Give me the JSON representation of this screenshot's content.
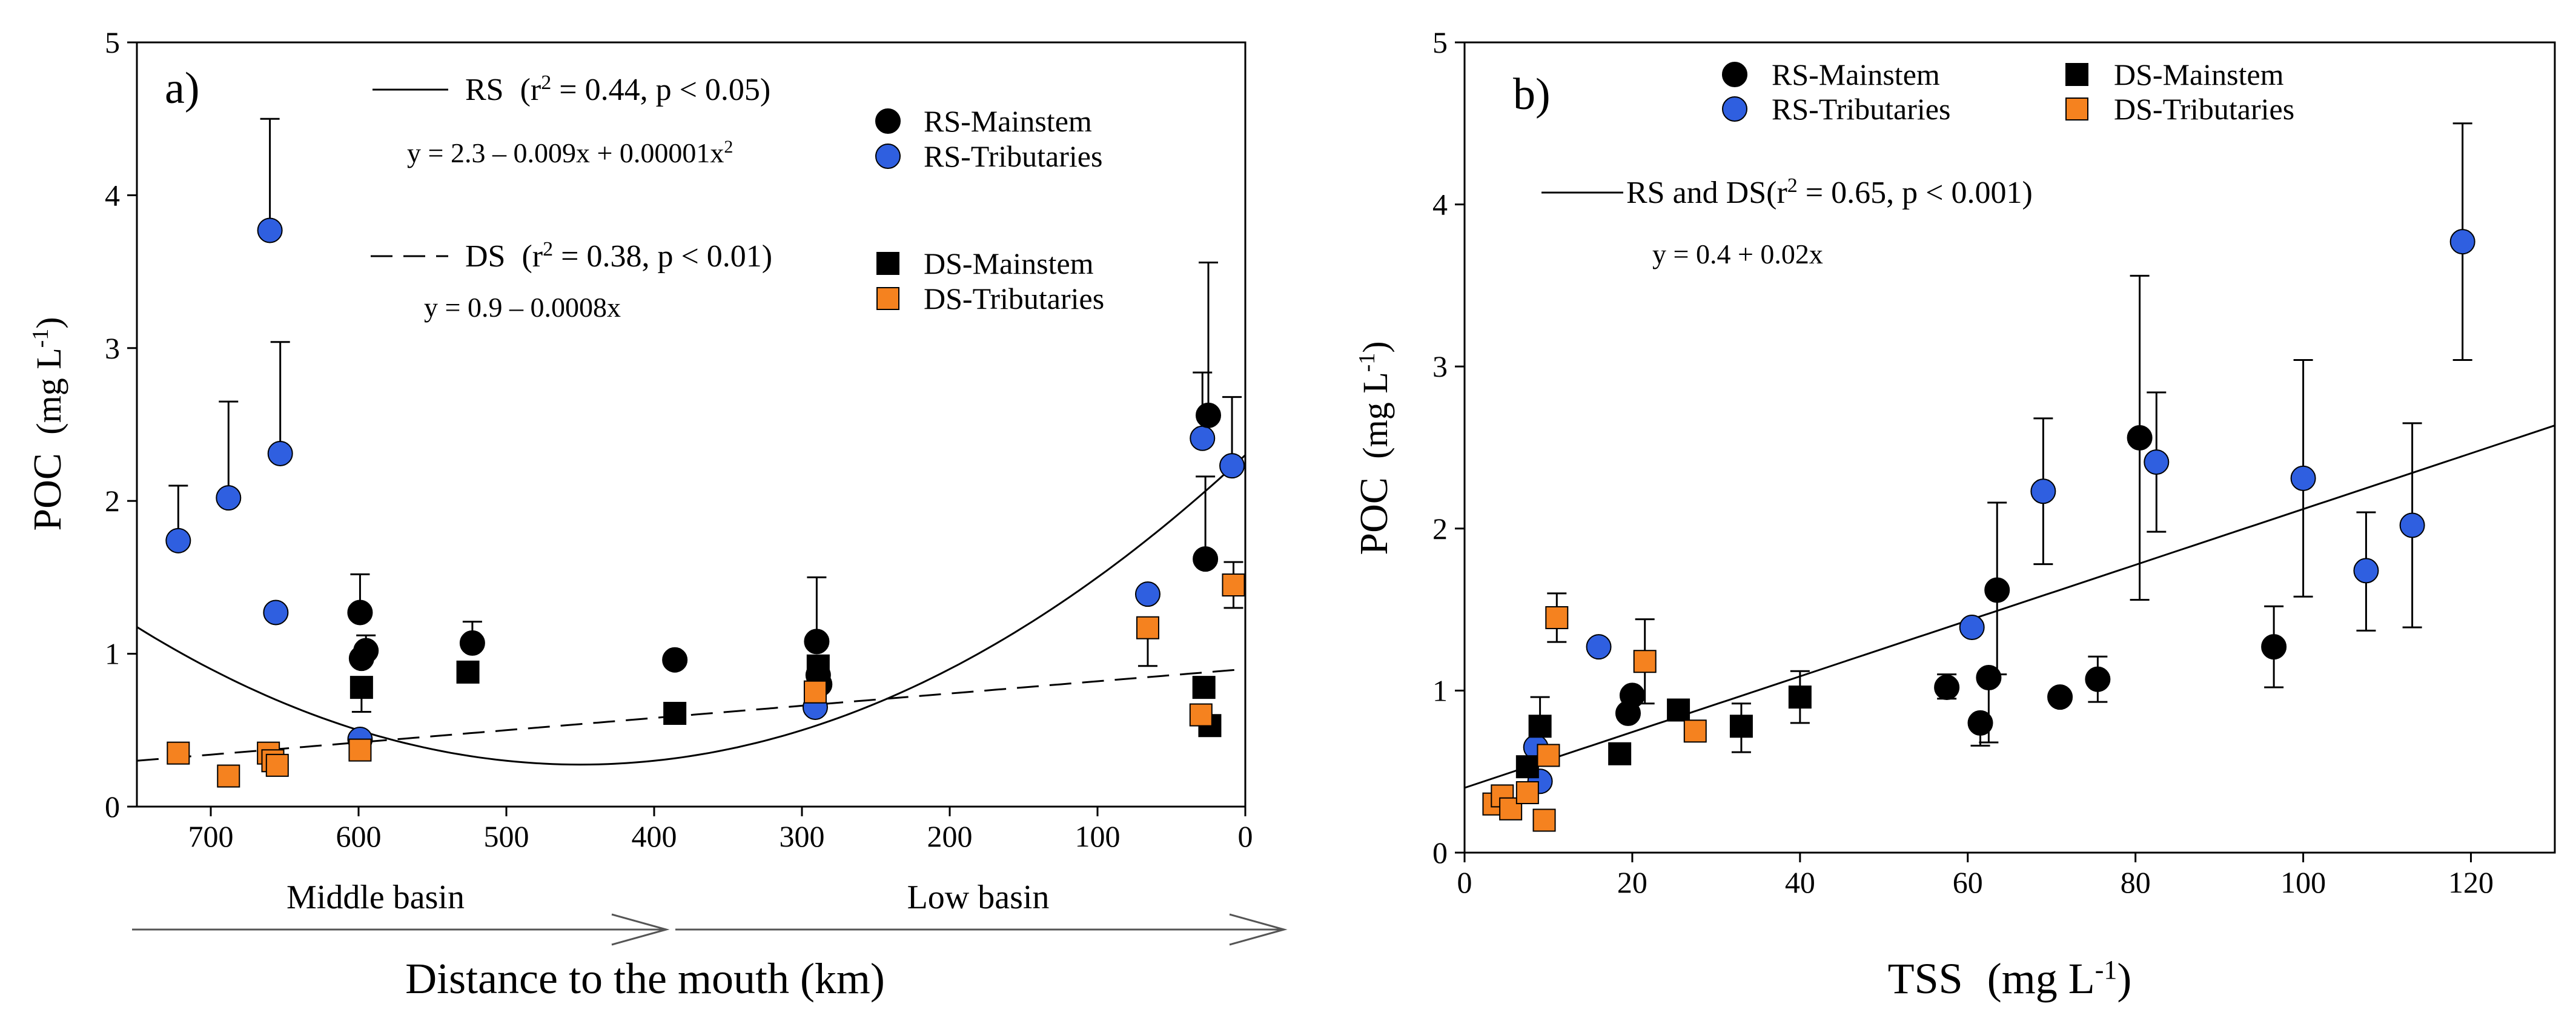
{
  "chart_data": [
    {
      "id": "a",
      "type": "scatter",
      "panel_label": "a)",
      "ylabel_main": "POC",
      "ylabel_unit": "(mg L",
      "ylabel_sup": "-1",
      "ylabel_close": ")",
      "xlabel": "Distance to the mouth  (km)",
      "xlim": [
        750,
        0
      ],
      "ylim": [
        0,
        5
      ],
      "xticks": [
        700,
        600,
        500,
        400,
        300,
        200,
        100,
        0
      ],
      "yticks": [
        0,
        1,
        2,
        3,
        4,
        5
      ],
      "basins": {
        "middle": "Middle basin",
        "low": "Low basin"
      },
      "fits": {
        "rs": {
          "label": "RS",
          "stats_open": "(r",
          "stats_sup": "2",
          "stats_rest": " = 0.44, p < 0.05)",
          "equation": "y = 2.3 – 0.009x + 0.00001x",
          "equation_sup": "2",
          "coef": [
            2.3,
            -0.009,
            1e-05
          ],
          "x_range": [
            750,
            0
          ]
        },
        "ds": {
          "label": "DS",
          "stats_open": "(r",
          "stats_sup": "2",
          "stats_rest": " = 0.38, p < 0.01)",
          "equation": "y  = 0.9 – 0.0008x",
          "coef": [
            0.9,
            -0.0008
          ],
          "x_range": [
            750,
            0
          ]
        }
      },
      "legend_top": [
        {
          "label": "RS-Mainstem",
          "marker": "circle",
          "color": "#000000"
        },
        {
          "label": "RS-Tributaries",
          "marker": "circle",
          "color": "#2f5fe0"
        }
      ],
      "legend_bottom": [
        {
          "label": "DS-Mainstem",
          "marker": "square",
          "color": "#000000"
        },
        {
          "label": "DS-Tributaries",
          "marker": "square",
          "color": "#f5821f"
        }
      ],
      "series": [
        {
          "name": "RS-Tributaries",
          "marker": "circle",
          "color": "#2f5fe0",
          "points": [
            {
              "x": 722,
              "y": 1.74,
              "hi": 2.1
            },
            {
              "x": 688,
              "y": 2.02,
              "hi": 2.65
            },
            {
              "x": 660,
              "y": 3.77,
              "hi": 4.5
            },
            {
              "x": 656,
              "y": 1.27
            },
            {
              "x": 653,
              "y": 2.31,
              "hi": 3.04
            },
            {
              "x": 599,
              "y": 0.44
            },
            {
              "x": 66,
              "y": 1.39
            },
            {
              "x": 29,
              "y": 2.41,
              "hi": 2.84
            },
            {
              "x": 9,
              "y": 2.23,
              "hi": 2.68
            },
            {
              "x": 291,
              "y": 0.65
            }
          ]
        },
        {
          "name": "RS-Mainstem",
          "marker": "circle",
          "color": "#000000",
          "points": [
            {
              "x": 599,
              "y": 1.27,
              "hi": 1.52
            },
            {
              "x": 598,
              "y": 0.97
            },
            {
              "x": 595,
              "y": 1.02,
              "hi": 1.12
            },
            {
              "x": 523,
              "y": 1.07,
              "hi": 1.21
            },
            {
              "x": 386,
              "y": 0.96
            },
            {
              "x": 290,
              "y": 1.08,
              "hi": 1.5
            },
            {
              "x": 289,
              "y": 0.86
            },
            {
              "x": 288,
              "y": 0.8
            },
            {
              "x": 25,
              "y": 2.56,
              "hi": 3.56
            },
            {
              "x": 27,
              "y": 1.62,
              "hi": 2.16
            }
          ]
        },
        {
          "name": "DS-Mainstem",
          "marker": "square",
          "color": "#000000",
          "points": [
            {
              "x": 598,
              "y": 0.78,
              "lo": 0.62
            },
            {
              "x": 526,
              "y": 0.88
            },
            {
              "x": 386,
              "y": 0.61
            },
            {
              "x": 289,
              "y": 0.92
            },
            {
              "x": 28,
              "y": 0.78
            },
            {
              "x": 24,
              "y": 0.53
            }
          ]
        },
        {
          "name": "DS-Tributaries",
          "marker": "square",
          "color": "#f5821f",
          "points": [
            {
              "x": 722,
              "y": 0.35
            },
            {
              "x": 688,
              "y": 0.2
            },
            {
              "x": 661,
              "y": 0.35
            },
            {
              "x": 658,
              "y": 0.3
            },
            {
              "x": 655,
              "y": 0.27
            },
            {
              "x": 599,
              "y": 0.37
            },
            {
              "x": 291,
              "y": 0.75
            },
            {
              "x": 66,
              "y": 1.17,
              "lo": 0.92
            },
            {
              "x": 30,
              "y": 0.6
            },
            {
              "x": 8,
              "y": 1.45,
              "hi": 1.6,
              "lo": 1.3
            }
          ]
        }
      ]
    },
    {
      "id": "b",
      "type": "scatter",
      "panel_label": "b)",
      "ylabel_main": "POC",
      "ylabel_unit": "(mg L",
      "ylabel_sup": "-1",
      "ylabel_close": ")",
      "xlabel_main": "TSS",
      "xlabel_unit": "(mg L",
      "xlabel_sup": "-1",
      "xlabel_close": ")",
      "xlim": [
        0,
        130
      ],
      "ylim": [
        0,
        5
      ],
      "xticks": [
        0,
        20,
        40,
        60,
        80,
        100,
        120
      ],
      "yticks": [
        0,
        1,
        2,
        3,
        4,
        5
      ],
      "fit": {
        "label": "RS and DS",
        "stats_open": "(r",
        "stats_sup": "2",
        "stats_rest": " = 0.65, p < 0.001)",
        "equation": "y = 0.4 + 0.02x",
        "coef": [
          0.4,
          0.0172
        ],
        "x_range": [
          0,
          130
        ]
      },
      "legend": [
        {
          "label": "RS-Mainstem",
          "marker": "circle",
          "color": "#000000"
        },
        {
          "label": "DS-Mainstem",
          "marker": "square",
          "color": "#000000"
        },
        {
          "label": "RS-Tributaries",
          "marker": "circle",
          "color": "#2f5fe0"
        },
        {
          "label": "DS-Tributaries",
          "marker": "square",
          "color": "#f5821f"
        }
      ],
      "series": [
        {
          "name": "RS-Mainstem",
          "marker": "circle",
          "color": "#000000",
          "points": [
            {
              "x": 19.5,
              "y": 0.86
            },
            {
              "x": 20,
              "y": 0.97
            },
            {
              "x": 57.5,
              "y": 1.02,
              "hi": 1.1,
              "lo": 0.95
            },
            {
              "x": 61.5,
              "y": 0.8,
              "lo": 0.66
            },
            {
              "x": 62.5,
              "y": 1.08,
              "lo": 0.68
            },
            {
              "x": 63.5,
              "y": 1.62,
              "hi": 2.16,
              "lo": 1.1
            },
            {
              "x": 71,
              "y": 0.96
            },
            {
              "x": 75.5,
              "y": 1.07,
              "hi": 1.21,
              "lo": 0.93
            },
            {
              "x": 80.5,
              "y": 2.56,
              "hi": 3.56,
              "lo": 1.56
            },
            {
              "x": 96.5,
              "y": 1.27,
              "hi": 1.52,
              "lo": 1.02
            }
          ]
        },
        {
          "name": "RS-Tributaries",
          "marker": "circle",
          "color": "#2f5fe0",
          "points": [
            {
              "x": 8.5,
              "y": 0.65
            },
            {
              "x": 9,
              "y": 0.44
            },
            {
              "x": 16,
              "y": 1.27
            },
            {
              "x": 60.5,
              "y": 1.39
            },
            {
              "x": 69,
              "y": 2.23,
              "hi": 2.68,
              "lo": 1.78
            },
            {
              "x": 82.5,
              "y": 2.41,
              "hi": 2.84,
              "lo": 1.98
            },
            {
              "x": 100,
              "y": 2.31,
              "hi": 3.04,
              "lo": 1.58
            },
            {
              "x": 107.5,
              "y": 1.74,
              "hi": 2.1,
              "lo": 1.37
            },
            {
              "x": 113,
              "y": 2.02,
              "hi": 2.65,
              "lo": 1.39
            },
            {
              "x": 119,
              "y": 3.77,
              "hi": 4.5,
              "lo": 3.04
            }
          ]
        },
        {
          "name": "DS-Mainstem",
          "marker": "square",
          "color": "#000000",
          "points": [
            {
              "x": 7.5,
              "y": 0.53
            },
            {
              "x": 9,
              "y": 0.78,
              "hi": 0.96
            },
            {
              "x": 18.5,
              "y": 0.61
            },
            {
              "x": 25.5,
              "y": 0.88
            },
            {
              "x": 33,
              "y": 0.78,
              "hi": 0.92,
              "lo": 0.62
            },
            {
              "x": 40,
              "y": 0.96,
              "hi": 1.12,
              "lo": 0.8
            }
          ]
        },
        {
          "name": "DS-Tributaries",
          "marker": "square",
          "color": "#f5821f",
          "points": [
            {
              "x": 3.5,
              "y": 0.3
            },
            {
              "x": 4.5,
              "y": 0.35
            },
            {
              "x": 5.5,
              "y": 0.27
            },
            {
              "x": 7.5,
              "y": 0.37
            },
            {
              "x": 9.5,
              "y": 0.2
            },
            {
              "x": 10,
              "y": 0.6
            },
            {
              "x": 11,
              "y": 1.45,
              "hi": 1.6,
              "lo": 1.3
            },
            {
              "x": 21.5,
              "y": 1.18,
              "hi": 1.44,
              "lo": 0.92
            },
            {
              "x": 27.5,
              "y": 0.75
            }
          ]
        }
      ]
    }
  ]
}
